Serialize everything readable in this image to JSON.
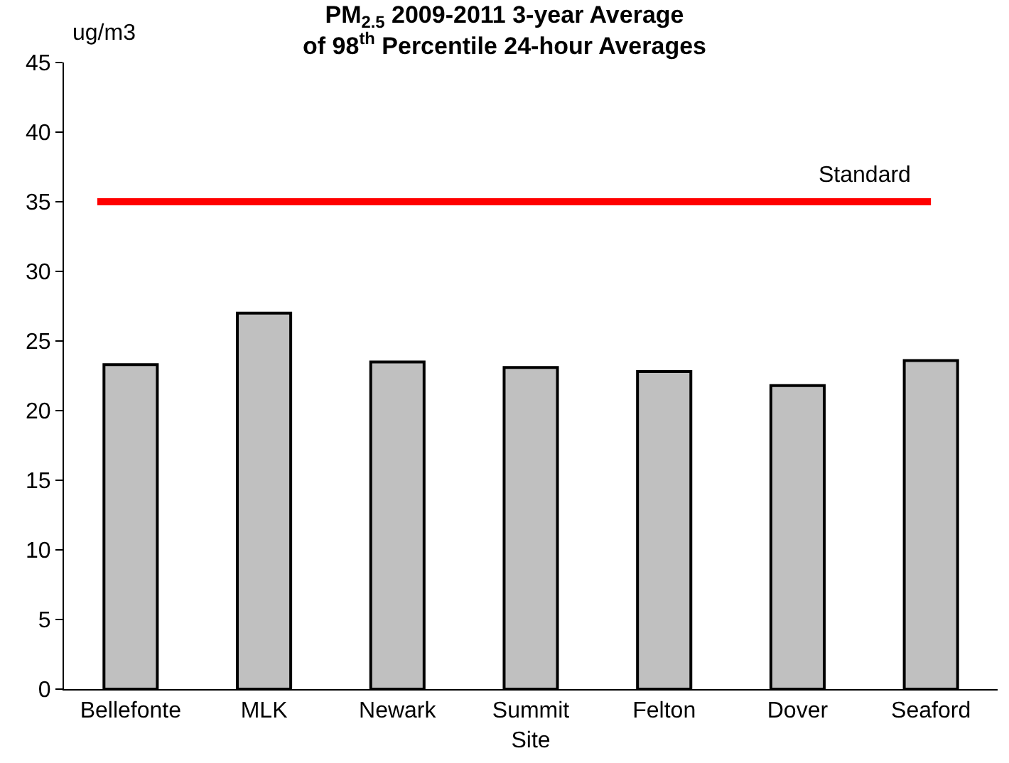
{
  "chart_data": {
    "type": "bar",
    "title": "PM$_{2.5}$ 2009-2011 3-year Average\nof 98$^{th}$ Percentile 24-hour Averages",
    "ylabel": "ug/m3",
    "categories": [
      "Bellefonte",
      "MLK",
      "Newark",
      "Summit Site",
      "Felton",
      "Dover",
      "Seaford"
    ],
    "values": [
      23.3,
      27.0,
      23.5,
      23.1,
      22.8,
      21.8,
      23.6
    ],
    "color": "#c0c0c0",
    "ylim": [
      0,
      45
    ],
    "yticks": [
      0,
      5,
      10,
      15,
      20,
      25,
      30,
      35,
      40,
      45
    ],
    "grid": false,
    "ref_lines": [
      {
        "axis": "y",
        "value": 35,
        "label": "Standard",
        "color": "#ff0000"
      }
    ]
  }
}
